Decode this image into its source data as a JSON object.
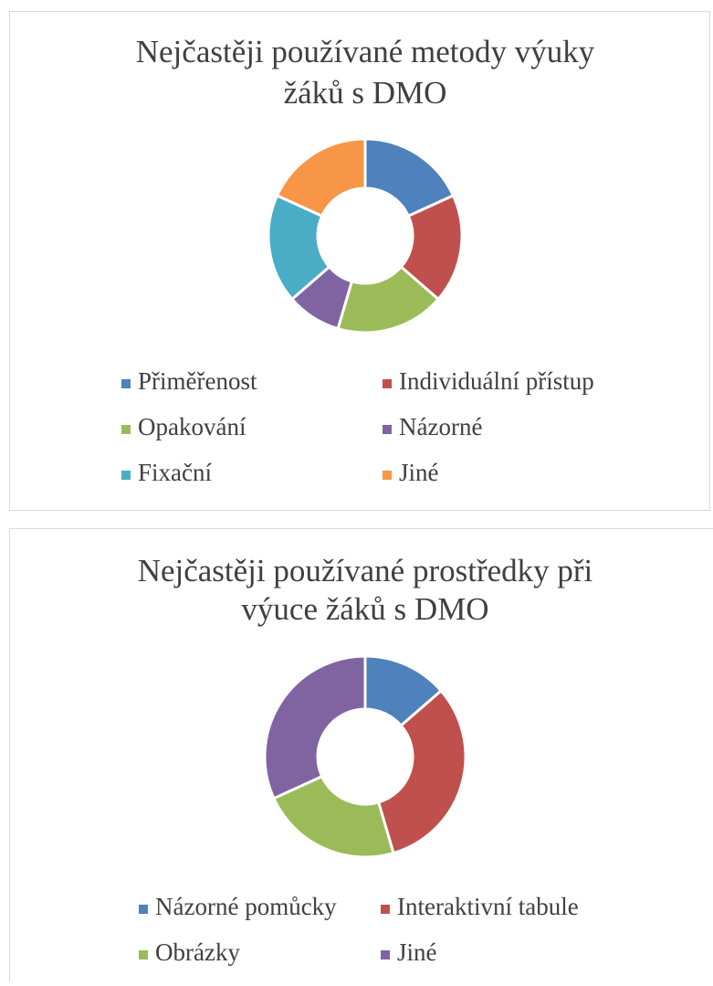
{
  "chart_data": [
    {
      "type": "donut",
      "title": [
        "Nejčastěji používané metody výuky",
        "žáků s DMO"
      ],
      "categories": [
        "Přiměřenost",
        "Individuální přístup",
        "Opakování",
        "Názorné",
        "Fixační",
        "Jiné"
      ],
      "values": [
        2,
        2,
        2,
        1,
        2,
        2
      ],
      "colors": [
        "#4f81bd",
        "#c0504d",
        "#9bbb59",
        "#8064a2",
        "#4bacc6",
        "#f79646"
      ],
      "legend": "bottom"
    },
    {
      "type": "donut",
      "title": [
        "Nejčastěji používané prostředky při",
        "výuce žáků s DMO"
      ],
      "categories": [
        "Názorné pomůcky",
        "Interaktivní tabule",
        "Obrázky",
        "Jiné"
      ],
      "values": [
        3,
        7,
        5,
        7
      ],
      "colors": [
        "#4f81bd",
        "#c0504d",
        "#9bbb59",
        "#8064a2"
      ],
      "legend": "bottom"
    }
  ]
}
